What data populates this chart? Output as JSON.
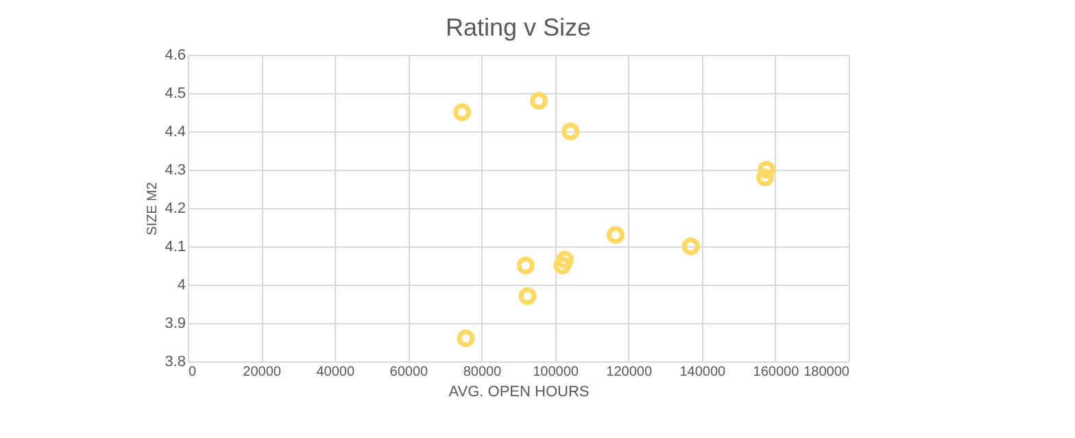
{
  "chart_data": {
    "type": "scatter",
    "title": "Rating v Size",
    "xlabel": "AVG. OPEN HOURS",
    "ylabel": "SIZE M2",
    "x": [
      74700,
      95600,
      104200,
      157600,
      157200,
      116500,
      137000,
      102700,
      102000,
      92000,
      92500,
      75700
    ],
    "series": [
      {
        "color": "#ffd966",
        "values": [
          4.45,
          4.48,
          4.4,
          4.3,
          4.28,
          4.13,
          4.1,
          4.065,
          4.05,
          4.05,
          3.97,
          3.86
        ]
      }
    ],
    "xlim": [
      0,
      180000
    ],
    "xticks": [
      0,
      20000,
      40000,
      60000,
      80000,
      100000,
      120000,
      140000,
      160000,
      180000
    ],
    "ylim": [
      3.8,
      4.6
    ],
    "yticks": [
      3.8,
      3.9,
      4,
      4.1,
      4.2,
      4.3,
      4.4,
      4.5,
      4.6
    ],
    "grid": true,
    "marker": "circle"
  }
}
